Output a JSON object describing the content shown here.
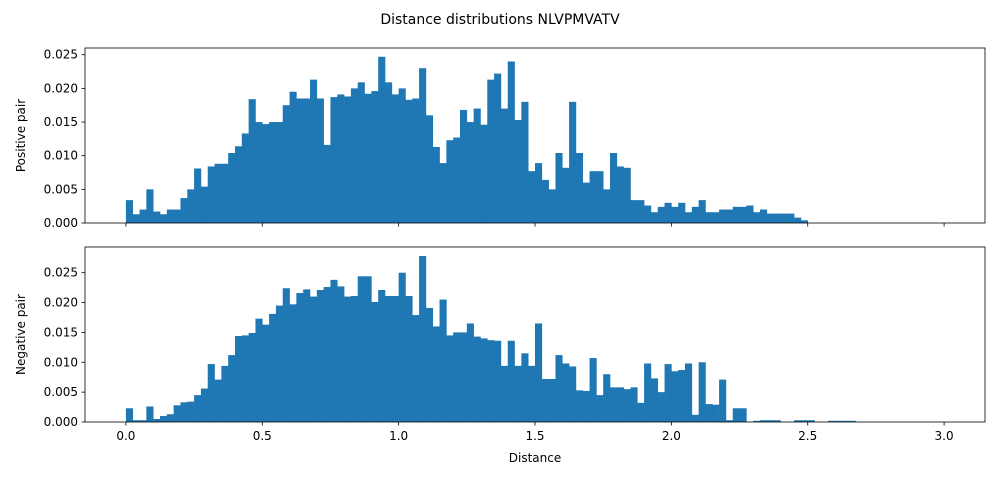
{
  "figure": {
    "title": "Distance distributions NLVPMVATV"
  },
  "chart_data": [
    {
      "type": "bar",
      "title": "",
      "xlabel": "",
      "ylabel": "Positive pair",
      "bar_color": "#1f77b4",
      "xlim": [
        -0.15,
        3.15
      ],
      "ylim": [
        0,
        0.026
      ],
      "xticks": [
        0.0,
        0.5,
        1.0,
        1.5,
        2.0,
        2.5,
        3.0
      ],
      "xtick_labels_visible": false,
      "yticks": [
        0.0,
        0.005,
        0.01,
        0.015,
        0.02,
        0.025
      ],
      "ytick_labels": [
        "0.000",
        "0.005",
        "0.010",
        "0.015",
        "0.020",
        "0.025"
      ],
      "bin_start": 0.0,
      "bin_width": 0.025,
      "values": [
        0.0034,
        0.0013,
        0.002,
        0.005,
        0.0017,
        0.0013,
        0.002,
        0.002,
        0.0037,
        0.005,
        0.0081,
        0.0054,
        0.0084,
        0.0088,
        0.0088,
        0.0104,
        0.0114,
        0.0133,
        0.0184,
        0.015,
        0.0147,
        0.015,
        0.015,
        0.0175,
        0.0195,
        0.0185,
        0.0185,
        0.0213,
        0.0185,
        0.0116,
        0.0187,
        0.0191,
        0.0188,
        0.02,
        0.0209,
        0.0192,
        0.0196,
        0.0247,
        0.0209,
        0.0191,
        0.02,
        0.0183,
        0.0185,
        0.023,
        0.016,
        0.0113,
        0.0089,
        0.0123,
        0.0127,
        0.0168,
        0.015,
        0.017,
        0.0146,
        0.0213,
        0.0222,
        0.017,
        0.024,
        0.0153,
        0.018,
        0.0077,
        0.0089,
        0.0064,
        0.005,
        0.0104,
        0.0082,
        0.018,
        0.0104,
        0.006,
        0.0077,
        0.0077,
        0.005,
        0.0104,
        0.0084,
        0.0082,
        0.0034,
        0.0034,
        0.0026,
        0.0016,
        0.0024,
        0.003,
        0.0024,
        0.003,
        0.0016,
        0.0024,
        0.0034,
        0.0016,
        0.0016,
        0.002,
        0.002,
        0.0024,
        0.0024,
        0.0026,
        0.0016,
        0.002,
        0.0014,
        0.0014,
        0.0014,
        0.0014,
        0.0008,
        0.0004
      ]
    },
    {
      "type": "bar",
      "title": "",
      "xlabel": "Distance",
      "ylabel": "Negative pair",
      "bar_color": "#1f77b4",
      "xlim": [
        -0.15,
        3.15
      ],
      "ylim": [
        0,
        0.0293
      ],
      "xticks": [
        0.0,
        0.5,
        1.0,
        1.5,
        2.0,
        2.5,
        3.0
      ],
      "xtick_labels": [
        "0.0",
        "0.5",
        "1.0",
        "1.5",
        "2.0",
        "2.5",
        "3.0"
      ],
      "yticks": [
        0.0,
        0.005,
        0.01,
        0.015,
        0.02,
        0.025
      ],
      "ytick_labels": [
        "0.000",
        "0.005",
        "0.010",
        "0.015",
        "0.020",
        "0.025"
      ],
      "bin_start": 0.0,
      "bin_width": 0.025,
      "values": [
        0.0023,
        0.0003,
        0.0003,
        0.0026,
        0.0005,
        0.001,
        0.0013,
        0.0028,
        0.0033,
        0.0034,
        0.0045,
        0.0056,
        0.0097,
        0.0071,
        0.0094,
        0.0112,
        0.0144,
        0.0145,
        0.0149,
        0.0173,
        0.0163,
        0.0181,
        0.0195,
        0.0224,
        0.0197,
        0.0216,
        0.0222,
        0.021,
        0.0221,
        0.0226,
        0.0238,
        0.0227,
        0.021,
        0.0211,
        0.0244,
        0.0244,
        0.0201,
        0.0221,
        0.0211,
        0.0211,
        0.025,
        0.0211,
        0.0179,
        0.0278,
        0.0191,
        0.016,
        0.0205,
        0.0145,
        0.015,
        0.015,
        0.0165,
        0.0143,
        0.014,
        0.0137,
        0.0136,
        0.0094,
        0.0136,
        0.0094,
        0.0115,
        0.0094,
        0.0165,
        0.0072,
        0.0072,
        0.0112,
        0.0098,
        0.0093,
        0.0053,
        0.0052,
        0.0107,
        0.0045,
        0.008,
        0.0058,
        0.0058,
        0.0055,
        0.0058,
        0.0032,
        0.0098,
        0.0073,
        0.005,
        0.0097,
        0.0085,
        0.0087,
        0.0098,
        0.0012,
        0.01,
        0.003,
        0.0029,
        0.0071,
        0.0003,
        0.0023,
        0.0023,
        0.0,
        0.0002,
        0.0003,
        0.0003,
        0.0003,
        0.0,
        0.0,
        0.0003,
        0.0003,
        0.0003,
        0.0,
        0.0,
        0.0002,
        0.0002,
        0.0002,
        0.0002,
        0.0
      ]
    }
  ]
}
